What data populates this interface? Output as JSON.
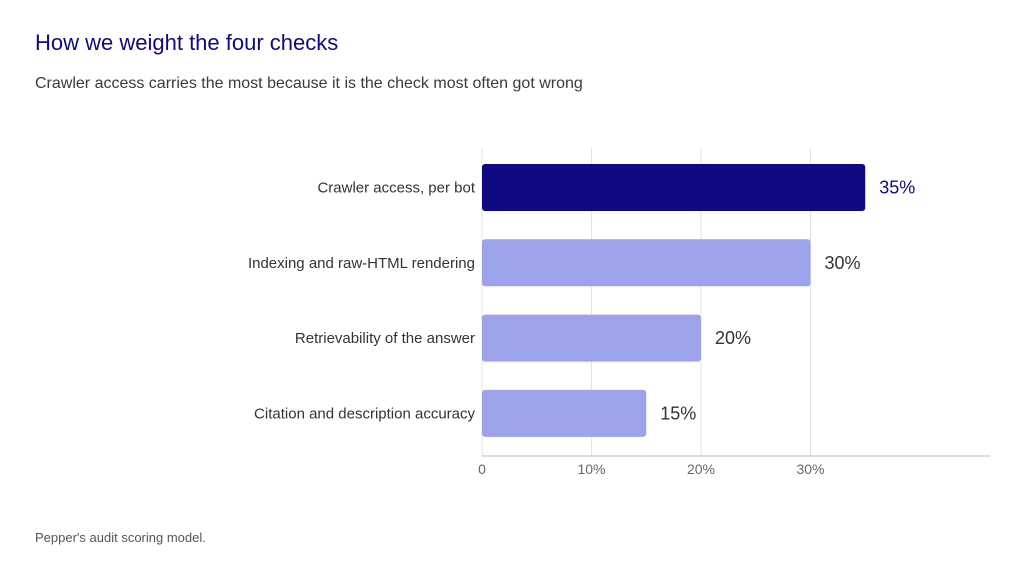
{
  "title": "How we weight the four checks",
  "subtitle": "Crawler access carries the most because it is the check most often got wrong",
  "source": "Pepper's audit scoring model.",
  "colors": {
    "highlight": "#0f0a82",
    "bar": "#9ca3ea",
    "grid": "#e3e3e3",
    "axis": "#bbbbbb",
    "highlight_label": "#0f0a82",
    "label": "#333333"
  },
  "chart_data": {
    "type": "bar",
    "orientation": "horizontal",
    "categories": [
      "Crawler access, per bot",
      "Indexing and raw-HTML rendering",
      "Retrievability of the answer",
      "Citation and description accuracy"
    ],
    "values": [
      35,
      30,
      20,
      15
    ],
    "value_labels": [
      "35%",
      "30%",
      "20%",
      "15%"
    ],
    "highlight_index": 0,
    "xlim": [
      0,
      46
    ],
    "xticks": [
      0,
      10,
      20,
      30
    ],
    "xtick_labels": [
      "0",
      "10%",
      "20%",
      "30%"
    ],
    "grid": true,
    "legend": "none"
  }
}
